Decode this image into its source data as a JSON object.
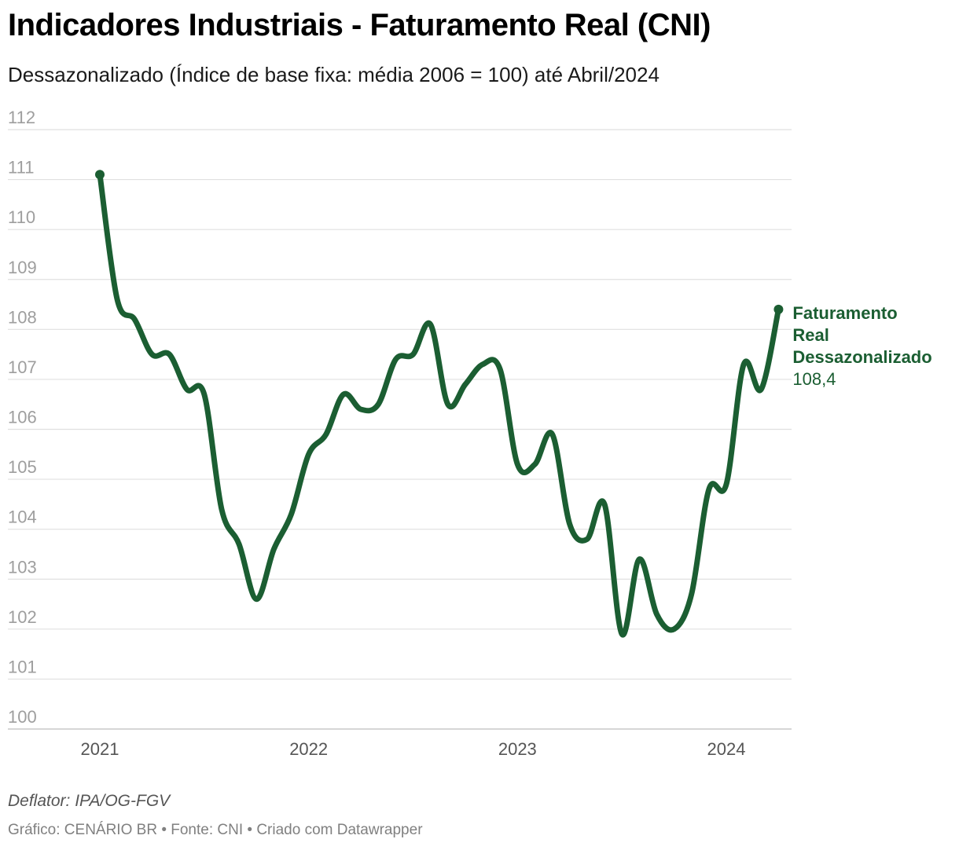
{
  "colors": {
    "line": "#1b5e32",
    "grid": "#e0e0e0",
    "tick": "#9e9e9e",
    "axis_year": "#555555"
  },
  "chart_data": {
    "type": "line",
    "title": "Indicadores Industriais - Faturamento Real (CNI)",
    "subtitle": "Dessazonalizado (Índice de base fixa: média 2006 = 100) até Abril/2024",
    "ylim": [
      100,
      112
    ],
    "yticks": [
      "100",
      "101",
      "102",
      "103",
      "104",
      "105",
      "106",
      "107",
      "108",
      "109",
      "110",
      "111",
      "112"
    ],
    "xticks": [
      "2021",
      "2022",
      "2023",
      "2024"
    ],
    "grid": true,
    "series": [
      {
        "name": "Faturamento Real Dessazonalizado",
        "label_lines": [
          "Faturamento",
          "Real",
          "Dessazonalizado"
        ],
        "last_value_label": "108,4",
        "x": [
          2021.0,
          2021.0833,
          2021.1667,
          2021.25,
          2021.3333,
          2021.4167,
          2021.5,
          2021.5833,
          2021.6667,
          2021.75,
          2021.8333,
          2021.9167,
          2022.0,
          2022.0833,
          2022.1667,
          2022.25,
          2022.3333,
          2022.4167,
          2022.5,
          2022.5833,
          2022.6667,
          2022.75,
          2022.8333,
          2022.9167,
          2023.0,
          2023.0833,
          2023.1667,
          2023.25,
          2023.3333,
          2023.4167,
          2023.5,
          2023.5833,
          2023.6667,
          2023.75,
          2023.8333,
          2023.9167,
          2024.0,
          2024.0833,
          2024.1667,
          2024.25
        ],
        "values": [
          111.1,
          108.6,
          108.2,
          107.5,
          107.5,
          106.8,
          106.7,
          104.4,
          103.7,
          102.6,
          103.6,
          104.3,
          105.5,
          105.9,
          106.7,
          106.4,
          106.5,
          107.4,
          107.5,
          108.1,
          106.5,
          106.9,
          107.3,
          107.2,
          105.3,
          105.3,
          105.9,
          104.1,
          103.8,
          104.5,
          101.9,
          103.4,
          102.3,
          102.0,
          102.7,
          104.8,
          104.9,
          107.3,
          106.8,
          108.4
        ]
      }
    ]
  },
  "footer": {
    "notes": "Deflator: IPA/OG-FGV",
    "credits": "Gráfico: CENÁRIO BR • Fonte: CNI • Criado com Datawrapper"
  }
}
